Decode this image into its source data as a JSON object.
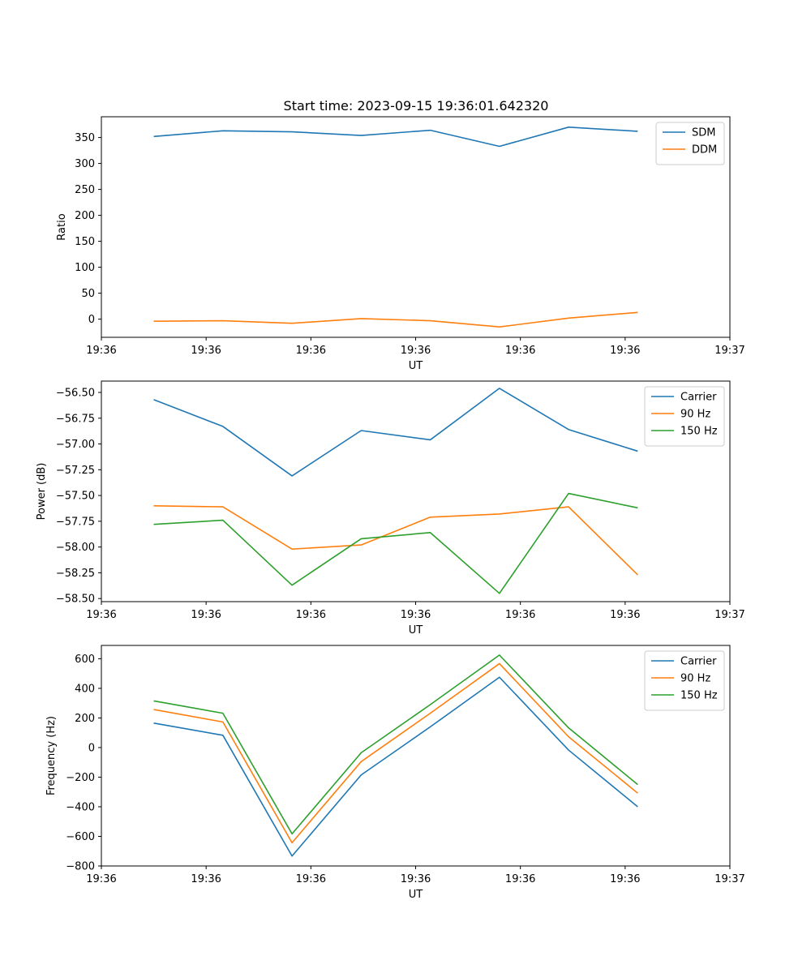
{
  "figure": {
    "title": "Start time: 2023-09-15 19:36:01.642320"
  },
  "colors": {
    "blue": "#1f77b4",
    "orange": "#ff7f0e",
    "green": "#2ca02c"
  },
  "chart_data": [
    {
      "type": "line",
      "title": "Start time: 2023-09-15 19:36:01.642320",
      "xlabel": "UT",
      "ylabel": "Ratio",
      "x": [
        0.5,
        1.16,
        1.82,
        2.48,
        3.14,
        3.8,
        4.46,
        5.12
      ],
      "xlim": [
        0,
        6
      ],
      "x_ticks": [
        0,
        1,
        2,
        3,
        4,
        5,
        6
      ],
      "x_tick_labels": [
        "19:36",
        "19:36",
        "19:36",
        "19:36",
        "19:36",
        "19:36",
        "19:37"
      ],
      "ylim": [
        -35,
        390
      ],
      "y_ticks": [
        0,
        50,
        100,
        150,
        200,
        250,
        300,
        350
      ],
      "y_tick_labels": [
        "0",
        "50",
        "100",
        "150",
        "200",
        "250",
        "300",
        "350"
      ],
      "legend_position": "top-right",
      "series": [
        {
          "name": "SDM",
          "color": "#1f77b4",
          "values": [
            352,
            363,
            361,
            354,
            364,
            333,
            370,
            362
          ]
        },
        {
          "name": "DDM",
          "color": "#ff7f0e",
          "values": [
            -4,
            -3,
            -8,
            1,
            -3,
            -15,
            2,
            13
          ]
        }
      ]
    },
    {
      "type": "line",
      "xlabel": "UT",
      "ylabel": "Power (dB)",
      "x": [
        0.5,
        1.16,
        1.82,
        2.48,
        3.14,
        3.8,
        4.46,
        5.12
      ],
      "xlim": [
        0,
        6
      ],
      "x_ticks": [
        0,
        1,
        2,
        3,
        4,
        5,
        6
      ],
      "x_tick_labels": [
        "19:36",
        "19:36",
        "19:36",
        "19:36",
        "19:36",
        "19:36",
        "19:37"
      ],
      "ylim": [
        -58.53,
        -56.39
      ],
      "y_ticks": [
        -58.5,
        -58.25,
        -58.0,
        -57.75,
        -57.5,
        -57.25,
        -57.0,
        -56.75,
        -56.5
      ],
      "y_tick_labels": [
        "−58.50",
        "−58.25",
        "−58.00",
        "−57.75",
        "−57.50",
        "−57.25",
        "−57.00",
        "−56.75",
        "−56.50"
      ],
      "legend_position": "top-right",
      "series": [
        {
          "name": "Carrier",
          "color": "#1f77b4",
          "values": [
            -56.57,
            -56.83,
            -57.31,
            -56.87,
            -56.96,
            -56.46,
            -56.86,
            -57.07
          ]
        },
        {
          "name": "90 Hz",
          "color": "#ff7f0e",
          "values": [
            -57.6,
            -57.61,
            -58.02,
            -57.98,
            -57.71,
            -57.68,
            -57.61,
            -58.27
          ]
        },
        {
          "name": "150 Hz",
          "color": "#2ca02c",
          "values": [
            -57.78,
            -57.74,
            -58.37,
            -57.92,
            -57.86,
            -58.45,
            -57.48,
            -57.62
          ]
        }
      ]
    },
    {
      "type": "line",
      "xlabel": "UT",
      "ylabel": "Frequency (Hz)",
      "x": [
        0.5,
        1.16,
        1.82,
        2.48,
        3.14,
        3.8,
        4.46,
        5.12
      ],
      "xlim": [
        0,
        6
      ],
      "x_ticks": [
        0,
        1,
        2,
        3,
        4,
        5,
        6
      ],
      "x_tick_labels": [
        "19:36",
        "19:36",
        "19:36",
        "19:36",
        "19:36",
        "19:36",
        "19:37"
      ],
      "ylim": [
        -800,
        690
      ],
      "y_ticks": [
        -800,
        -600,
        -400,
        -200,
        0,
        200,
        400,
        600
      ],
      "y_tick_labels": [
        "−800",
        "−600",
        "−400",
        "−200",
        "0",
        "200",
        "400",
        "600"
      ],
      "legend_position": "top-right",
      "series": [
        {
          "name": "Carrier",
          "color": "#1f77b4",
          "values": [
            165,
            83,
            -733,
            -185,
            140,
            475,
            -17,
            -400
          ]
        },
        {
          "name": "90 Hz",
          "color": "#ff7f0e",
          "values": [
            257,
            173,
            -643,
            -95,
            232,
            567,
            73,
            -308
          ]
        },
        {
          "name": "150 Hz",
          "color": "#2ca02c",
          "values": [
            315,
            232,
            -583,
            -35,
            290,
            625,
            133,
            -250
          ]
        }
      ]
    }
  ]
}
